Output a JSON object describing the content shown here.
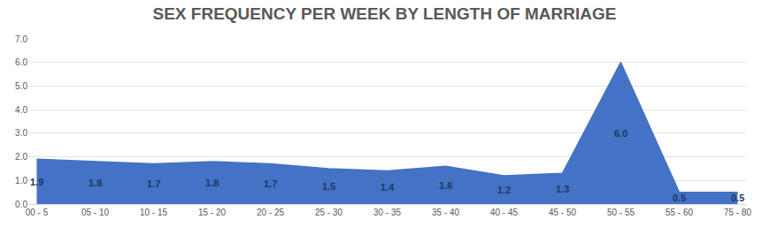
{
  "chart_data": {
    "type": "area",
    "title": "SEX FREQUENCY PER WEEK BY LENGTH OF MARRIAGE",
    "categories": [
      "00 - 5",
      "05 - 10",
      "10 - 15",
      "15 - 20",
      "20 - 25",
      "25 - 30",
      "30 - 35",
      "35 - 40",
      "40 - 45",
      "45 - 50",
      "50 - 55",
      "55 - 60",
      "75 - 80"
    ],
    "values": [
      1.9,
      1.8,
      1.7,
      1.8,
      1.7,
      1.5,
      1.4,
      1.6,
      1.2,
      1.3,
      6.0,
      0.5,
      0.5
    ],
    "value_labels": [
      "1.9",
      "1.8",
      "1.7",
      "1.8",
      "1.7",
      "1.5",
      "1.4",
      "1.6",
      "1.2",
      "1.3",
      "6.0",
      "0.5",
      "0.5"
    ],
    "color": "#4472c4",
    "ylim": [
      0,
      7
    ],
    "yticks": [
      {
        "value": 0,
        "label": "0.0"
      },
      {
        "value": 1,
        "label": "1.0"
      },
      {
        "value": 2,
        "label": "2.0"
      },
      {
        "value": 3,
        "label": "3.0"
      },
      {
        "value": 4,
        "label": "4.0"
      },
      {
        "value": 5,
        "label": "5.0"
      },
      {
        "value": 6,
        "label": "6.0"
      },
      {
        "value": 7,
        "label": "7.0"
      }
    ],
    "grid": true,
    "data_labels": true
  }
}
